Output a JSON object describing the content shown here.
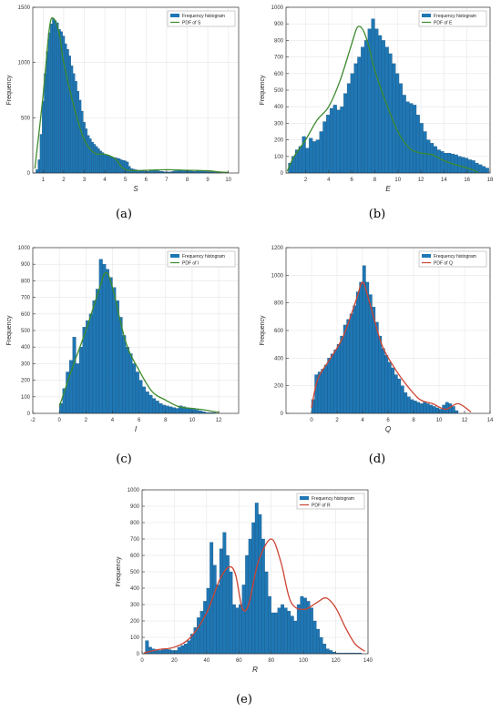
{
  "chart_data": [
    {
      "id": "a",
      "panel_label": "(a)",
      "type": "bar",
      "xlabel": "S",
      "ylabel": "Frequency",
      "xlim": [
        0.5,
        10.5
      ],
      "ylim": [
        0,
        1500
      ],
      "xticks": [
        1,
        2,
        3,
        4,
        5,
        6,
        7,
        8,
        9,
        10
      ],
      "yticks": [
        0,
        500,
        1000,
        1500
      ],
      "legend": [
        "Frequency histogram",
        "PDF of S"
      ],
      "legend_position": "top-right",
      "bin_start": 0.65,
      "bin_width": 0.1,
      "values": [
        30,
        120,
        350,
        650,
        900,
        1100,
        1270,
        1350,
        1400,
        1380,
        1360,
        1300,
        1280,
        1240,
        1170,
        1120,
        1060,
        970,
        900,
        830,
        740,
        660,
        560,
        460,
        400,
        340,
        310,
        280,
        260,
        240,
        220,
        200,
        185,
        170,
        165,
        160,
        150,
        140,
        140,
        135,
        130,
        120,
        115,
        110,
        100,
        60,
        40,
        35,
        30,
        25,
        20,
        20,
        20,
        15,
        15,
        20,
        25,
        25,
        20,
        20,
        15,
        15,
        10,
        10,
        10,
        10,
        15,
        20,
        20,
        25,
        25,
        25,
        20,
        20,
        20,
        20,
        15,
        15,
        20,
        20,
        15,
        15,
        15,
        10,
        10,
        10,
        10,
        5,
        5,
        5
      ],
      "pdf": [
        [
          0.6,
          40
        ],
        [
          1.0,
          700
        ],
        [
          1.3,
          1300
        ],
        [
          1.5,
          1400
        ],
        [
          1.8,
          1250
        ],
        [
          2.0,
          1000
        ],
        [
          2.5,
          600
        ],
        [
          3.0,
          300
        ],
        [
          3.5,
          180
        ],
        [
          4.0,
          170
        ],
        [
          4.5,
          130
        ],
        [
          5.0,
          30
        ],
        [
          6.0,
          25
        ],
        [
          7.0,
          30
        ],
        [
          8.0,
          25
        ],
        [
          9.0,
          20
        ],
        [
          9.5,
          10
        ],
        [
          10.0,
          5
        ]
      ],
      "bar_color": "#1f77b4",
      "pdf_color": "#3d8b2e"
    },
    {
      "id": "b",
      "panel_label": "(b)",
      "type": "bar",
      "xlabel": "E",
      "ylabel": "Frequency",
      "xlim": [
        0.3,
        18
      ],
      "ylim": [
        0,
        1000
      ],
      "xticks": [
        2,
        4,
        6,
        8,
        10,
        12,
        14,
        16,
        18
      ],
      "yticks": [
        0,
        100,
        200,
        300,
        400,
        500,
        600,
        700,
        800,
        900,
        1000
      ],
      "legend": [
        "Frequency histogram",
        "PDF of E"
      ],
      "legend_position": "top-right",
      "bin_start": 0.5,
      "bin_width": 0.3,
      "values": [
        60,
        100,
        140,
        160,
        220,
        150,
        210,
        190,
        200,
        250,
        310,
        350,
        390,
        410,
        380,
        400,
        480,
        540,
        600,
        660,
        700,
        760,
        800,
        870,
        930,
        870,
        830,
        800,
        760,
        720,
        660,
        600,
        540,
        470,
        430,
        420,
        410,
        350,
        300,
        250,
        200,
        180,
        160,
        140,
        130,
        120,
        120,
        115,
        110,
        100,
        95,
        90,
        80,
        75,
        60,
        50,
        40,
        30,
        20,
        10
      ],
      "pdf": [
        [
          0.4,
          10
        ],
        [
          1.0,
          100
        ],
        [
          2.0,
          200
        ],
        [
          3.0,
          320
        ],
        [
          4.0,
          400
        ],
        [
          5.0,
          560
        ],
        [
          6.0,
          780
        ],
        [
          6.5,
          880
        ],
        [
          7.0,
          860
        ],
        [
          7.5,
          760
        ],
        [
          8.0,
          620
        ],
        [
          9.0,
          420
        ],
        [
          10.0,
          250
        ],
        [
          11.0,
          150
        ],
        [
          12.0,
          120
        ],
        [
          13.0,
          110
        ],
        [
          14.0,
          75
        ],
        [
          15.0,
          50
        ],
        [
          16.0,
          30
        ],
        [
          17.0,
          5
        ]
      ],
      "bar_color": "#1f77b4",
      "pdf_color": "#3d8b2e"
    },
    {
      "id": "c",
      "panel_label": "(c)",
      "type": "bar",
      "xlabel": "I",
      "ylabel": "Frequency",
      "xlim": [
        -2,
        13.5
      ],
      "ylim": [
        0,
        1000
      ],
      "xticks": [
        -2,
        0,
        2,
        4,
        6,
        8,
        10,
        12
      ],
      "yticks": [
        0,
        100,
        200,
        300,
        400,
        500,
        600,
        700,
        800,
        900,
        1000
      ],
      "legend": [
        "Frequency histogram",
        "PDF of I"
      ],
      "legend_position": "top-right",
      "bin_start": 0.0,
      "bin_width": 0.25,
      "values": [
        60,
        150,
        250,
        320,
        460,
        300,
        400,
        520,
        560,
        600,
        680,
        750,
        930,
        900,
        870,
        820,
        760,
        680,
        580,
        470,
        400,
        360,
        300,
        250,
        200,
        160,
        130,
        110,
        90,
        75,
        60,
        50,
        45,
        40,
        35,
        30,
        45,
        40,
        35,
        30,
        25,
        20,
        15,
        10,
        5,
        5,
        5
      ],
      "pdf": [
        [
          0.0,
          40
        ],
        [
          1.0,
          280
        ],
        [
          2.0,
          500
        ],
        [
          3.0,
          750
        ],
        [
          3.5,
          850
        ],
        [
          4.0,
          760
        ],
        [
          5.0,
          430
        ],
        [
          6.0,
          260
        ],
        [
          7.0,
          130
        ],
        [
          8.0,
          80
        ],
        [
          9.0,
          40
        ],
        [
          10.0,
          30
        ],
        [
          11.0,
          20
        ],
        [
          12.0,
          5
        ]
      ],
      "bar_color": "#1f77b4",
      "pdf_color": "#3d8b2e"
    },
    {
      "id": "d",
      "panel_label": "(d)",
      "type": "bar",
      "xlabel": "Q",
      "ylabel": "Frequency",
      "xlim": [
        -2,
        14
      ],
      "ylim": [
        0,
        1200
      ],
      "xticks": [
        0,
        2,
        4,
        6,
        8,
        10,
        12,
        14
      ],
      "yticks": [
        0,
        200,
        400,
        600,
        800,
        1000,
        1200
      ],
      "legend": [
        "Frequency histogram",
        "PDF of Q"
      ],
      "legend_position": "top-right",
      "bin_start": 0.0,
      "bin_width": 0.25,
      "values": [
        100,
        280,
        300,
        320,
        350,
        400,
        430,
        460,
        500,
        560,
        640,
        680,
        720,
        780,
        880,
        950,
        1070,
        950,
        860,
        770,
        660,
        560,
        470,
        420,
        370,
        330,
        280,
        250,
        200,
        150,
        120,
        100,
        90,
        80,
        70,
        80,
        70,
        60,
        50,
        40,
        30,
        60,
        80,
        70,
        50,
        20
      ],
      "pdf": [
        [
          0.0,
          40
        ],
        [
          0.5,
          250
        ],
        [
          1.5,
          400
        ],
        [
          2.5,
          560
        ],
        [
          3.5,
          820
        ],
        [
          4.0,
          950
        ],
        [
          4.5,
          820
        ],
        [
          5.5,
          500
        ],
        [
          6.5,
          330
        ],
        [
          7.5,
          200
        ],
        [
          8.5,
          100
        ],
        [
          9.5,
          70
        ],
        [
          10.5,
          30
        ],
        [
          11.5,
          70
        ],
        [
          12.5,
          10
        ]
      ],
      "bar_color": "#1f77b4",
      "pdf_color": "#cc4433"
    },
    {
      "id": "e",
      "panel_label": "(e)",
      "type": "bar",
      "xlabel": "R",
      "ylabel": "Frequency",
      "xlim": [
        0,
        140
      ],
      "ylim": [
        0,
        1000
      ],
      "xticks": [
        0,
        20,
        40,
        60,
        80,
        100,
        120,
        140
      ],
      "yticks": [
        0,
        100,
        200,
        300,
        400,
        500,
        600,
        700,
        800,
        900,
        1000
      ],
      "legend": [
        "Frequency histogram",
        "PDF of R"
      ],
      "legend_position": "top-right",
      "bin_start": 2,
      "bin_width": 2,
      "values": [
        80,
        40,
        30,
        25,
        20,
        30,
        30,
        25,
        20,
        20,
        40,
        50,
        60,
        80,
        120,
        160,
        220,
        260,
        320,
        400,
        680,
        540,
        420,
        640,
        740,
        600,
        500,
        300,
        280,
        300,
        420,
        600,
        700,
        800,
        920,
        850,
        700,
        500,
        350,
        250,
        250,
        280,
        300,
        280,
        260,
        230,
        200,
        300,
        350,
        340,
        320,
        280,
        200,
        150,
        100,
        60,
        30,
        20,
        10,
        5,
        5,
        5,
        5,
        5,
        5,
        5,
        5
      ],
      "pdf": [
        [
          1,
          5
        ],
        [
          10,
          25
        ],
        [
          20,
          40
        ],
        [
          30,
          100
        ],
        [
          40,
          250
        ],
        [
          48,
          450
        ],
        [
          54,
          530
        ],
        [
          58,
          480
        ],
        [
          62,
          280
        ],
        [
          66,
          300
        ],
        [
          72,
          560
        ],
        [
          80,
          700
        ],
        [
          86,
          560
        ],
        [
          92,
          320
        ],
        [
          100,
          270
        ],
        [
          108,
          310
        ],
        [
          114,
          340
        ],
        [
          120,
          280
        ],
        [
          126,
          160
        ],
        [
          132,
          60
        ],
        [
          138,
          15
        ]
      ],
      "bar_color": "#1f77b4",
      "pdf_color": "#cc4433"
    }
  ]
}
